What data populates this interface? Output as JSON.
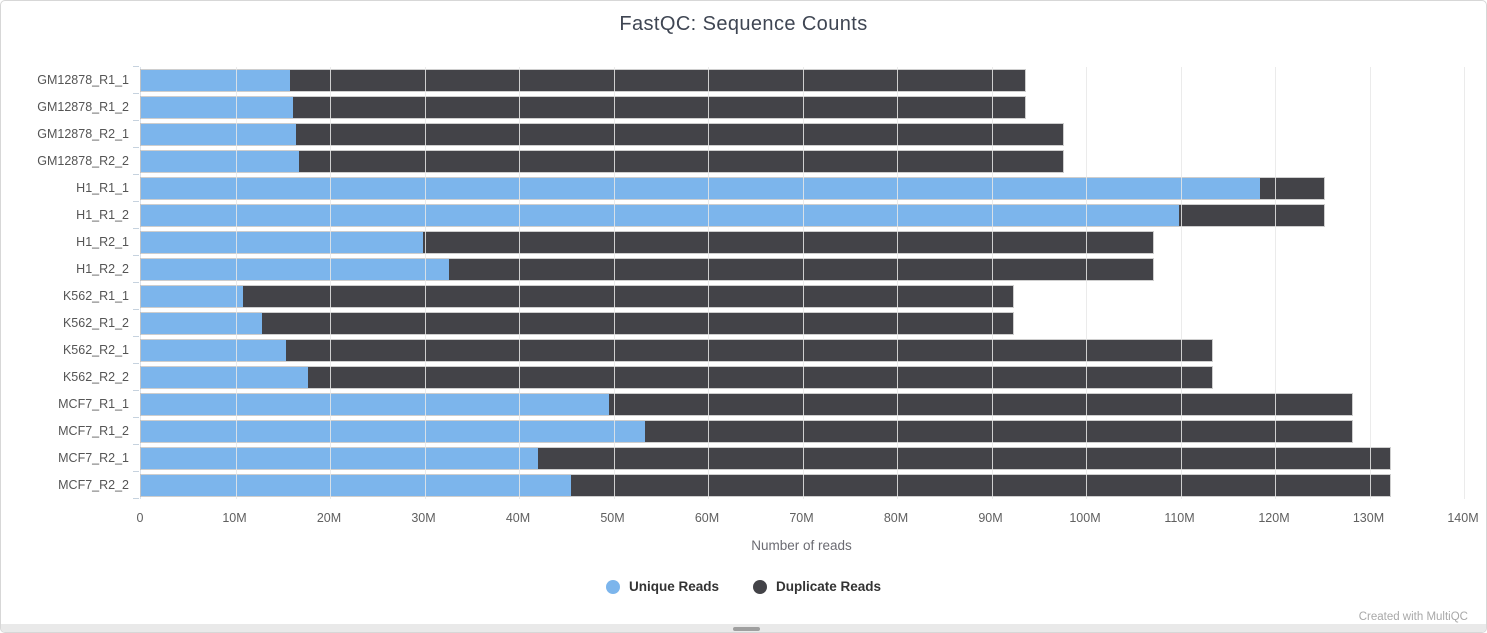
{
  "title": "FastQC: Sequence Counts",
  "footer": {
    "credit": "Created with MultiQC"
  },
  "colors": {
    "unique_reads": "#7cb5ec",
    "duplicate_reads": "#434348",
    "gridline": "#e7e7e7",
    "background": "#ffffff"
  },
  "chart_data": {
    "type": "bar",
    "orientation": "horizontal",
    "stacked": true,
    "title": "FastQC: Sequence Counts",
    "xlabel": "Number of reads",
    "ylabel": "",
    "xlim_M": [
      0,
      140
    ],
    "grid": true,
    "legend_position": "bottom",
    "x_ticks": [
      "0",
      "10M",
      "20M",
      "30M",
      "40M",
      "50M",
      "60M",
      "70M",
      "80M",
      "90M",
      "100M",
      "110M",
      "120M",
      "130M",
      "140M"
    ],
    "categories": [
      "GM12878_R1_1",
      "GM12878_R1_2",
      "GM12878_R2_1",
      "GM12878_R2_2",
      "H1_R1_1",
      "H1_R1_2",
      "H1_R2_1",
      "H1_R2_2",
      "K562_R1_1",
      "K562_R1_2",
      "K562_R2_1",
      "K562_R2_2",
      "MCF7_R1_1",
      "MCF7_R1_2",
      "MCF7_R2_1",
      "MCF7_R2_2"
    ],
    "series": [
      {
        "name": "Unique Reads",
        "color": "#7cb5ec",
        "values_M": [
          15.8,
          16.1,
          16.4,
          16.7,
          118.4,
          109.8,
          29.8,
          32.6,
          10.8,
          12.8,
          15.3,
          17.7,
          49.5,
          53.3,
          42.0,
          45.5
        ]
      },
      {
        "name": "Duplicate Reads",
        "color": "#434348",
        "values_M": [
          77.7,
          77.4,
          81.2,
          80.9,
          6.8,
          15.4,
          77.3,
          74.5,
          81.5,
          79.5,
          98.0,
          95.6,
          78.7,
          74.9,
          90.2,
          86.7
        ]
      }
    ],
    "totals_M": [
      93.5,
      93.5,
      97.6,
      97.6,
      125.2,
      125.2,
      107.1,
      107.1,
      92.3,
      92.3,
      113.3,
      113.3,
      128.2,
      128.2,
      132.2,
      132.2
    ]
  }
}
